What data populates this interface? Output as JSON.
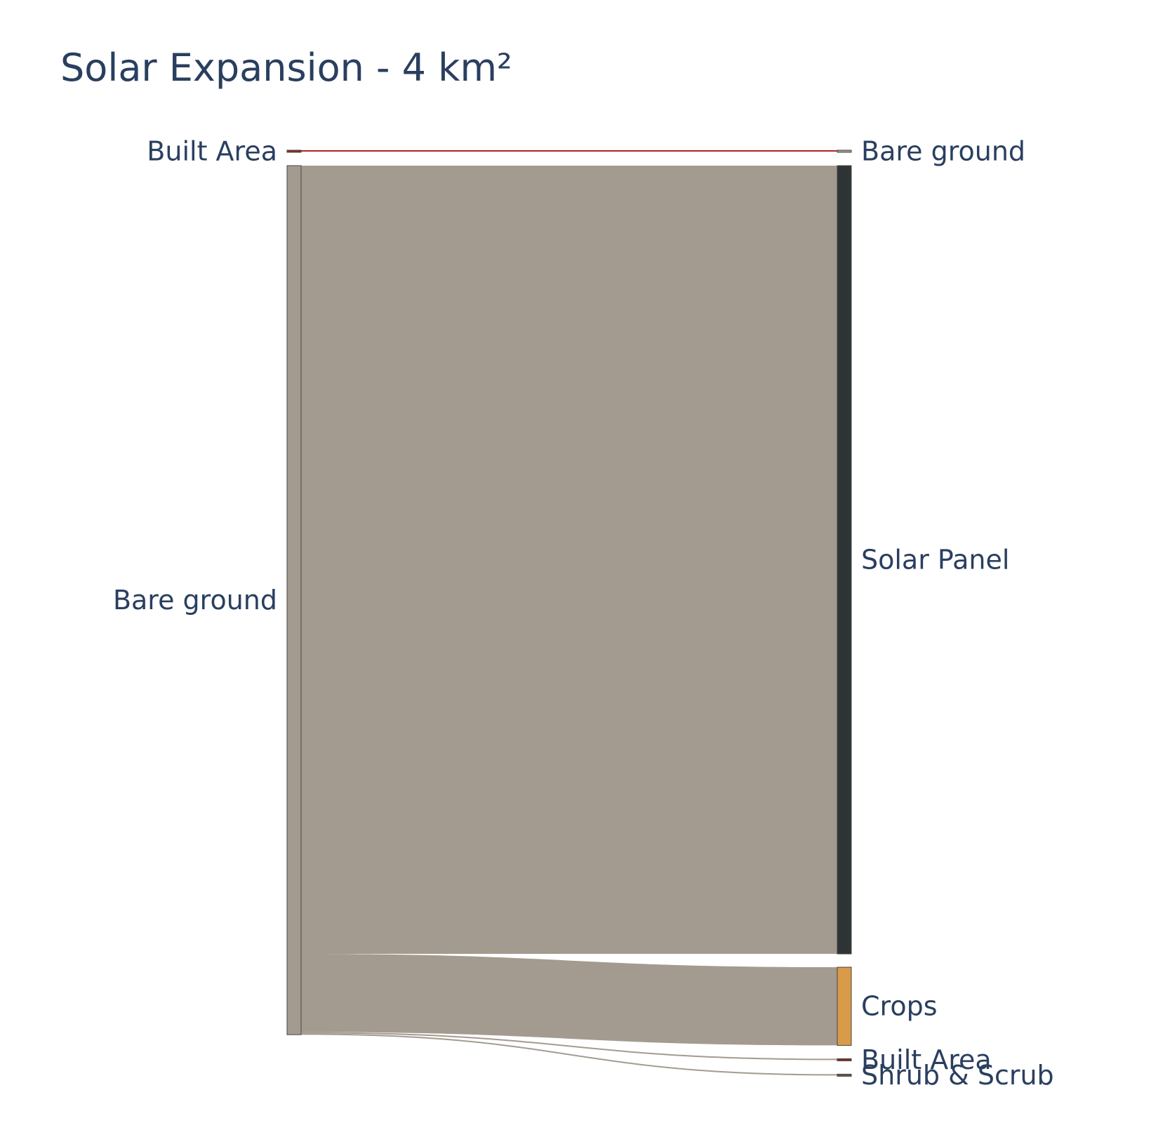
{
  "chart_data": {
    "type": "sankey",
    "title": "Solar Expansion - 4 km²",
    "nodes": [
      {
        "id": "src_built",
        "label": "Built Area",
        "column": "source",
        "color": "#8b2b1f"
      },
      {
        "id": "src_bare",
        "label": "Bare ground",
        "column": "source",
        "color": "#a39b8f"
      },
      {
        "id": "dst_bare",
        "label": "Bare ground",
        "column": "target",
        "color": "#a39b8f"
      },
      {
        "id": "dst_solar",
        "label": "Solar Panel",
        "column": "target",
        "color": "#2e3436"
      },
      {
        "id": "dst_crops",
        "label": "Crops",
        "column": "target",
        "color": "#d99b4a"
      },
      {
        "id": "dst_built",
        "label": "Built Area",
        "column": "target",
        "color": "#8b2b1f"
      },
      {
        "id": "dst_shrub",
        "label": "Shrub & Scrub",
        "column": "target",
        "color": "#6b5a3a"
      }
    ],
    "links": [
      {
        "source": "src_built",
        "target": "dst_bare",
        "value": 0.006,
        "color": "#b22222"
      },
      {
        "source": "src_bare",
        "target": "dst_solar",
        "value": 3.63,
        "color": "#a39b8f"
      },
      {
        "source": "src_bare",
        "target": "dst_crops",
        "value": 0.36,
        "color": "#a39b8f"
      },
      {
        "source": "src_bare",
        "target": "dst_built",
        "value": 0.006,
        "color": "#a39b8f"
      },
      {
        "source": "src_bare",
        "target": "dst_shrub",
        "value": 0.006,
        "color": "#a39b8f"
      }
    ]
  }
}
